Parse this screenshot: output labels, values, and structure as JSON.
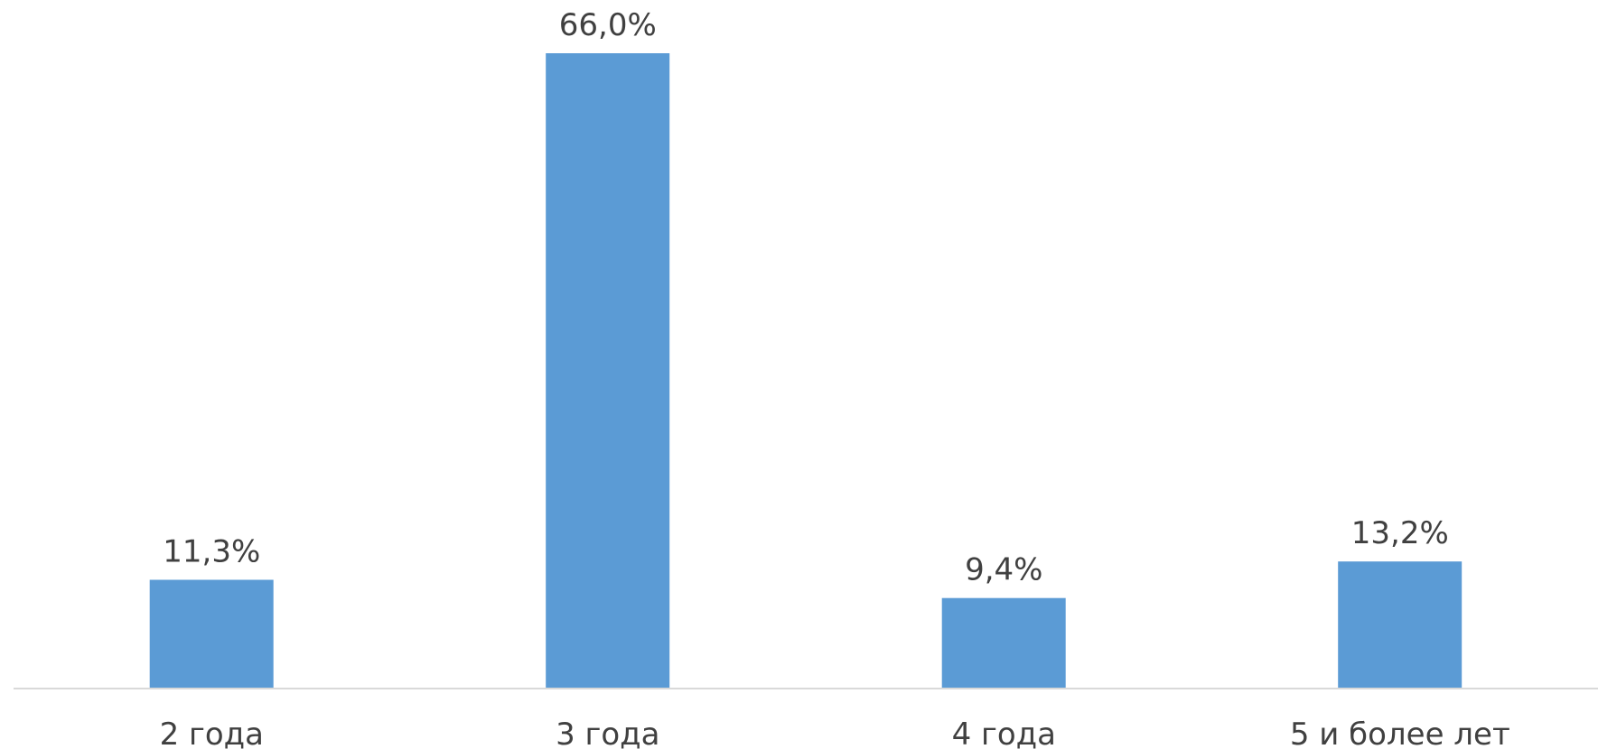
{
  "chart_data": {
    "type": "bar",
    "categories": [
      "2 года",
      "3 года",
      "4 года",
      "5 и более лет"
    ],
    "values": [
      11.3,
      66.0,
      9.4,
      13.2
    ],
    "data_labels": [
      "11,3%",
      "66,0%",
      "9,4%",
      "13,2%"
    ],
    "title": "",
    "xlabel": "",
    "ylabel": "",
    "ylim": [
      0,
      66.0
    ],
    "grid": false,
    "legend": "none",
    "bar_color": "#5b9bd5",
    "axis_color": "#d9d9d9",
    "text_color": "#404040"
  }
}
